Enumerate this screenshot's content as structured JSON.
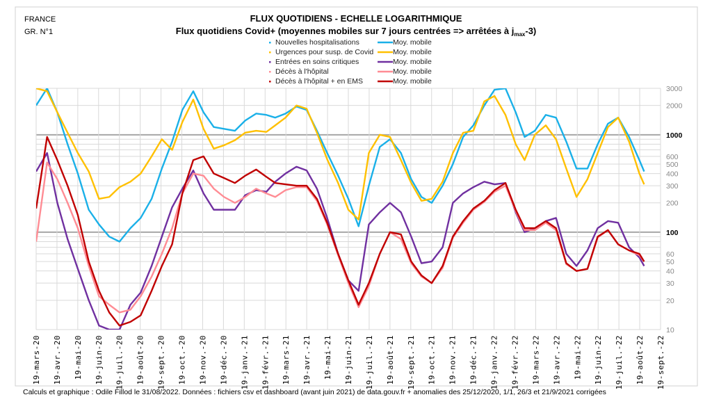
{
  "header": {
    "country": "FRANCE",
    "graph_no": "GR. N°1"
  },
  "footer": "Calculs et graphique : Odile Fillod le 31/08/2022.  Données : fichiers csv et dashboard (avant juin 2021)  de data.gouv.fr + anomalies des 25/12/2020,  1/1, 26/3  et 21/9/2021  corrigées",
  "chart_data": {
    "type": "line",
    "title": "FLUX QUOTIDIENS - ECHELLE LOGARITHMIQUE",
    "subtitle_parts": [
      "Flux quotidiens Covid+ (moyennes mobiles sur 7 jours centrées => arrêtées à j",
      "max",
      "-3)"
    ],
    "yscale": "log",
    "ylim": [
      10,
      3000
    ],
    "xlim": [
      "2020-03-19",
      "2022-09-19"
    ],
    "grid": true,
    "y_ticks": [
      3000,
      2000,
      1000,
      600,
      500,
      400,
      300,
      200,
      100,
      60,
      50,
      40,
      30,
      20,
      10
    ],
    "y_major_ticks": [
      1000,
      100
    ],
    "x_tick_labels": [
      "19-mars-20",
      "19-avr.-20",
      "19-mai-20",
      "19-juin-20",
      "19-juil.-20",
      "19-août-20",
      "19-sept.-20",
      "19-oct.-20",
      "19-nov.-20",
      "19-déc.-20",
      "19-janv.-21",
      "19-févr.-21",
      "19-mars-21",
      "19-avr.-21",
      "19-mai-21",
      "19-juin-21",
      "19-juil.-21",
      "19-août-21",
      "19-sept.-21",
      "19-oct.-21",
      "19-nov.-21",
      "19-déc.-21",
      "19-janv.-22",
      "19-févr.-22",
      "19-mars-22",
      "19-avr.-22",
      "19-mai-22",
      "19-juin-22",
      "19-juil.-22",
      "19-août-22",
      "19-sept.-22"
    ],
    "legend_placement": "top-center",
    "legend": [
      {
        "points_label": "Nouvelles hospitalisations",
        "line_label": "Moy. mobile",
        "color": "#1AB0E8"
      },
      {
        "points_label": "Urgences pour susp. de Covid",
        "line_label": "Moy. mobile",
        "color": "#FFC000"
      },
      {
        "points_label": "Entrées en soins critiques",
        "line_label": "Moy. mobile",
        "color": "#7030A0"
      },
      {
        "points_label": "Décès à l'hôpital",
        "line_label": "Moy. mobile",
        "color": "#FF8C94"
      },
      {
        "points_label": "Décès à l'hôpital + en EMS",
        "line_label": "Moy. mobile",
        "color": "#C00000"
      }
    ],
    "x": [
      "2020-03-19",
      "2020-04-04",
      "2020-04-19",
      "2020-05-04",
      "2020-05-19",
      "2020-06-04",
      "2020-06-19",
      "2020-07-04",
      "2020-07-19",
      "2020-08-04",
      "2020-08-19",
      "2020-09-04",
      "2020-09-19",
      "2020-10-04",
      "2020-10-19",
      "2020-11-04",
      "2020-11-19",
      "2020-12-04",
      "2020-12-19",
      "2021-01-04",
      "2021-01-19",
      "2021-02-04",
      "2021-02-19",
      "2021-03-04",
      "2021-03-19",
      "2021-04-04",
      "2021-04-19",
      "2021-05-04",
      "2021-05-19",
      "2021-06-04",
      "2021-06-19",
      "2021-07-04",
      "2021-07-19",
      "2021-08-04",
      "2021-08-19",
      "2021-09-04",
      "2021-09-19",
      "2021-10-04",
      "2021-10-19",
      "2021-11-04",
      "2021-11-19",
      "2021-12-04",
      "2021-12-19",
      "2022-01-04",
      "2022-01-19",
      "2022-02-04",
      "2022-02-19",
      "2022-03-04",
      "2022-03-19",
      "2022-04-04",
      "2022-04-19",
      "2022-05-04",
      "2022-05-19",
      "2022-06-04",
      "2022-06-19",
      "2022-07-04",
      "2022-07-19",
      "2022-08-04",
      "2022-08-19",
      "2022-08-26"
    ],
    "series": [
      {
        "name": "Nouvelles hospitalisations - Moy. mobile",
        "color": "#1AB0E8",
        "values": [
          2000,
          3000,
          1700,
          800,
          400,
          170,
          120,
          90,
          80,
          110,
          140,
          220,
          450,
          850,
          1800,
          2800,
          1700,
          1200,
          1150,
          1100,
          1400,
          1650,
          1600,
          1500,
          1650,
          1950,
          1800,
          1100,
          650,
          380,
          220,
          115,
          300,
          750,
          900,
          650,
          350,
          230,
          200,
          300,
          500,
          950,
          1250,
          2000,
          2900,
          3000,
          1700,
          950,
          1100,
          1600,
          1500,
          850,
          450,
          450,
          800,
          1300,
          1500,
          950,
          550,
          420
        ]
      },
      {
        "name": "Urgences pour susp. de Covid - Moy. mobile",
        "color": "#FFC000",
        "values": [
          3000,
          2800,
          1700,
          1050,
          650,
          420,
          220,
          230,
          290,
          330,
          400,
          600,
          900,
          700,
          1350,
          2300,
          1150,
          720,
          780,
          880,
          1050,
          1100,
          1070,
          1250,
          1500,
          2000,
          1850,
          1050,
          560,
          320,
          170,
          135,
          650,
          1000,
          950,
          550,
          320,
          210,
          220,
          330,
          650,
          1050,
          1100,
          2200,
          2500,
          1600,
          800,
          550,
          1000,
          1250,
          900,
          450,
          230,
          350,
          650,
          1200,
          1500,
          850,
          400,
          310
        ]
      },
      {
        "name": "Entrées en soins critiques - Moy. mobile",
        "color": "#7030A0",
        "values": [
          420,
          650,
          200,
          85,
          42,
          20,
          11,
          10,
          10,
          18,
          24,
          45,
          90,
          180,
          280,
          430,
          250,
          170,
          170,
          170,
          240,
          270,
          260,
          330,
          400,
          470,
          430,
          280,
          140,
          60,
          32,
          25,
          120,
          160,
          200,
          160,
          90,
          48,
          50,
          70,
          200,
          250,
          290,
          330,
          310,
          320,
          160,
          100,
          110,
          130,
          140,
          60,
          45,
          65,
          110,
          130,
          125,
          70,
          55,
          45
        ]
      },
      {
        "name": "Décès à l'hôpital - Moy. mobile",
        "color": "#FF8C94",
        "values": [
          80,
          520,
          350,
          200,
          110,
          45,
          22,
          18,
          15,
          16,
          22,
          35,
          60,
          110,
          250,
          400,
          380,
          280,
          230,
          200,
          230,
          280,
          250,
          230,
          270,
          290,
          290,
          210,
          120,
          58,
          30,
          17,
          28,
          60,
          100,
          85,
          48,
          35,
          30,
          43,
          88,
          125,
          170,
          205,
          260,
          300,
          165,
          105,
          105,
          125,
          105,
          47,
          40,
          42,
          88,
          105,
          75,
          65,
          58,
          50
        ]
      },
      {
        "name": "Décès à l'hôpital + en EMS - Moy. mobile",
        "color": "#C00000",
        "values": [
          175,
          950,
          550,
          300,
          150,
          50,
          25,
          15,
          11,
          12,
          14,
          25,
          45,
          75,
          250,
          550,
          600,
          400,
          360,
          320,
          380,
          440,
          370,
          320,
          310,
          300,
          300,
          220,
          125,
          60,
          32,
          18,
          30,
          60,
          100,
          95,
          50,
          36,
          30,
          45,
          90,
          130,
          175,
          210,
          270,
          320,
          170,
          110,
          110,
          130,
          110,
          48,
          40,
          42,
          90,
          105,
          75,
          65,
          60,
          50
        ]
      }
    ]
  }
}
